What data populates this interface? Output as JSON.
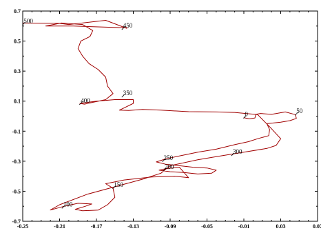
{
  "chart_data": {
    "type": "line",
    "title": "",
    "xlabel": "",
    "ylabel": "",
    "xlim": [
      -0.25,
      0.07
    ],
    "ylim": [
      -0.7,
      0.7
    ],
    "grid": false,
    "legend": "none",
    "line_color": "#a00000",
    "x_ticks": [
      {
        "v": -0.25,
        "label": "-0.25"
      },
      {
        "v": -0.21,
        "label": "-0.21"
      },
      {
        "v": -0.17,
        "label": "-0.17"
      },
      {
        "v": -0.13,
        "label": "-0.13"
      },
      {
        "v": -0.09,
        "label": "-0.09"
      },
      {
        "v": -0.05,
        "label": "-0.05"
      },
      {
        "v": -0.01,
        "label": "-0.01"
      },
      {
        "v": 0.03,
        "label": "0.03"
      },
      {
        "v": 0.07,
        "label": "0.07"
      }
    ],
    "y_ticks": [
      {
        "v": 0.7,
        "label": "0.7"
      },
      {
        "v": 0.5,
        "label": "0.5"
      },
      {
        "v": 0.3,
        "label": "0.3"
      },
      {
        "v": 0.1,
        "label": "0.1"
      },
      {
        "v": -0.1,
        "label": "-0.1"
      },
      {
        "v": -0.3,
        "label": "-0.3"
      },
      {
        "v": -0.5,
        "label": "-0.5"
      },
      {
        "v": -0.7,
        "label": "-0.7"
      }
    ],
    "point_labels": [
      {
        "label": "0",
        "x": -0.009,
        "y": -0.005
      },
      {
        "label": "50",
        "x": 0.047,
        "y": 0.015
      },
      {
        "label": "100",
        "x": -0.206,
        "y": -0.605
      },
      {
        "label": "150",
        "x": -0.151,
        "y": -0.475
      },
      {
        "label": "200",
        "x": -0.096,
        "y": -0.355
      },
      {
        "label": "250",
        "x": -0.097,
        "y": -0.295
      },
      {
        "label": "300",
        "x": -0.022,
        "y": -0.255
      },
      {
        "label": "350",
        "x": -0.141,
        "y": 0.135
      },
      {
        "label": "400",
        "x": -0.187,
        "y": 0.085
      },
      {
        "label": "450",
        "x": -0.141,
        "y": 0.585
      },
      {
        "label": "500",
        "x": -0.249,
        "y": 0.615
      }
    ],
    "series": [
      {
        "x": [
          -0.01,
          -0.004,
          0.002,
          0.003,
          0.008,
          0.02,
          0.035,
          0.046,
          0.047,
          0.04,
          0.03,
          0.015,
          0.018,
          0.017,
          0.005,
          -0.005,
          -0.02,
          -0.04,
          -0.06,
          -0.08,
          -0.095,
          -0.105,
          -0.095,
          -0.08,
          -0.065,
          -0.05,
          -0.04,
          -0.045,
          -0.06,
          -0.075,
          -0.09,
          -0.102,
          -0.095,
          -0.08,
          -0.07,
          -0.085,
          -0.11,
          -0.14,
          -0.16,
          -0.152,
          -0.15,
          -0.158,
          -0.168,
          -0.185,
          -0.193,
          -0.182,
          -0.175,
          -0.19,
          -0.205,
          -0.22,
          -0.21,
          -0.18,
          -0.15,
          -0.12,
          -0.1,
          -0.09,
          -0.06,
          -0.04,
          -0.01,
          0.015,
          0.025,
          0.03,
          0.018,
          0.005,
          -0.02,
          -0.04,
          -0.07,
          -0.1,
          -0.12,
          -0.135,
          -0.145,
          -0.13,
          -0.13,
          -0.15,
          -0.17,
          -0.188,
          -0.183,
          -0.16,
          -0.152,
          -0.158,
          -0.16,
          -0.168,
          -0.178,
          -0.185,
          -0.19,
          -0.187,
          -0.177,
          -0.174,
          -0.185,
          -0.208,
          -0.225,
          -0.195,
          -0.145,
          -0.137,
          -0.137,
          -0.16,
          -0.2,
          -0.21,
          -0.25
        ],
        "y": [
          -0.01,
          -0.018,
          -0.012,
          0.012,
          0.018,
          0.012,
          0.028,
          0.01,
          -0.015,
          -0.03,
          -0.04,
          -0.05,
          -0.09,
          -0.13,
          -0.15,
          -0.17,
          -0.19,
          -0.22,
          -0.24,
          -0.265,
          -0.285,
          -0.305,
          -0.32,
          -0.33,
          -0.34,
          -0.345,
          -0.36,
          -0.38,
          -0.385,
          -0.375,
          -0.37,
          -0.36,
          -0.35,
          -0.34,
          -0.41,
          -0.4,
          -0.405,
          -0.425,
          -0.45,
          -0.48,
          -0.54,
          -0.59,
          -0.625,
          -0.63,
          -0.62,
          -0.6,
          -0.585,
          -0.58,
          -0.6,
          -0.625,
          -0.59,
          -0.52,
          -0.47,
          -0.42,
          -0.38,
          -0.33,
          -0.29,
          -0.27,
          -0.24,
          -0.215,
          -0.195,
          -0.15,
          -0.07,
          0.01,
          0.025,
          0.028,
          0.03,
          0.04,
          0.045,
          0.038,
          0.04,
          0.085,
          0.11,
          0.11,
          0.1,
          0.085,
          0.08,
          0.11,
          0.15,
          0.2,
          0.26,
          0.31,
          0.35,
          0.4,
          0.45,
          0.5,
          0.53,
          0.57,
          0.61,
          0.62,
          0.6,
          0.6,
          0.59,
          0.59,
          0.585,
          0.638,
          0.61,
          0.618,
          0.62
        ]
      }
    ]
  }
}
